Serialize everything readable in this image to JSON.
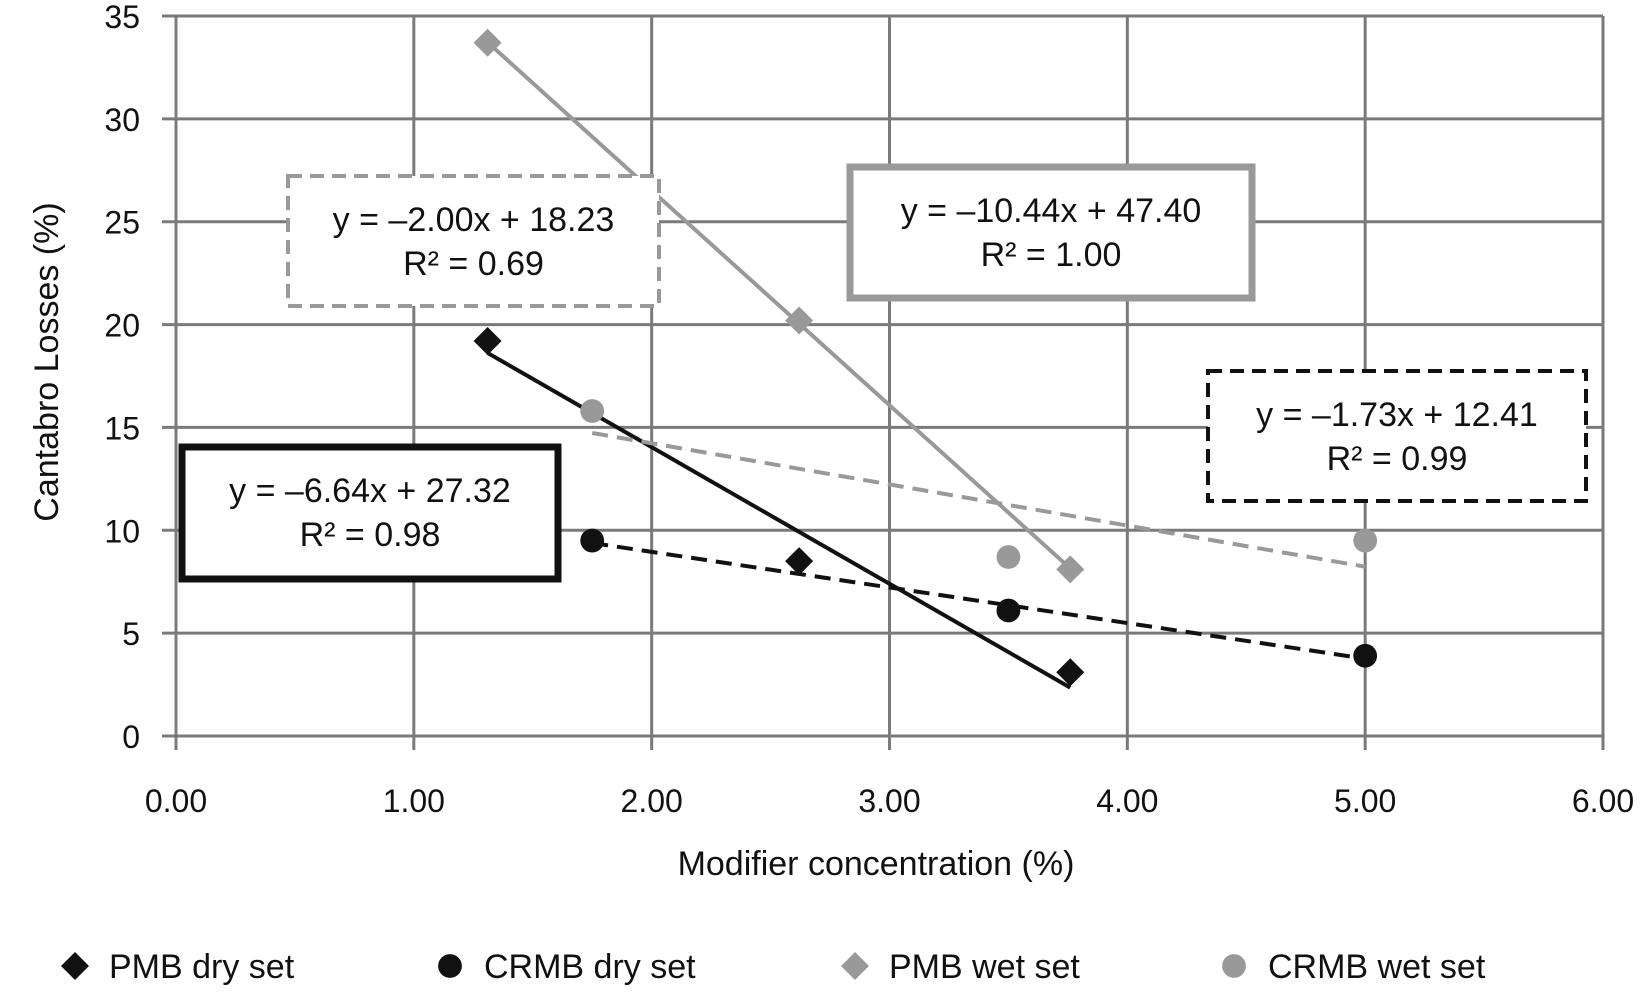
{
  "chart_data": {
    "type": "scatter",
    "xlabel": "Modifier concentration (%)",
    "ylabel": "Cantabro Losses (%)",
    "xlim": [
      0,
      6
    ],
    "ylim": [
      0,
      35
    ],
    "x_ticks": [
      "0.00",
      "1.00",
      "2.00",
      "3.00",
      "4.00",
      "5.00",
      "6.00"
    ],
    "y_ticks": [
      "0",
      "5",
      "10",
      "15",
      "20",
      "25",
      "30",
      "35"
    ],
    "grid": true,
    "legend_position": "bottom",
    "series": [
      {
        "name": "PMB dry set",
        "marker": "diamond",
        "color": "#111111",
        "points": [
          [
            1.31,
            19.2
          ],
          [
            2.62,
            8.5
          ],
          [
            3.76,
            3.1
          ]
        ],
        "trendline": {
          "x": [
            1.31,
            3.76
          ],
          "style": "solid",
          "slope": -6.64,
          "intercept": 27.32,
          "equation": "y = –6.64x + 27.32",
          "r2": "R² = 0.98"
        }
      },
      {
        "name": "CRMB dry set",
        "marker": "circle",
        "color": "#111111",
        "points": [
          [
            1.75,
            9.5
          ],
          [
            3.5,
            6.1
          ],
          [
            5.0,
            3.9
          ]
        ],
        "trendline": {
          "x": [
            1.75,
            5.0
          ],
          "style": "dashed",
          "slope": -1.73,
          "intercept": 12.41,
          "equation": "y = –1.73x + 12.41",
          "r2": "R² = 0.99"
        }
      },
      {
        "name": "PMB wet set",
        "marker": "diamond",
        "color": "#999999",
        "points": [
          [
            1.31,
            33.7
          ],
          [
            2.62,
            20.2
          ],
          [
            3.76,
            8.1
          ]
        ],
        "trendline": {
          "x": [
            1.31,
            3.76
          ],
          "style": "solid",
          "slope": -10.44,
          "intercept": 47.4,
          "equation": "y = –10.44x + 47.40",
          "r2": "R² = 1.00"
        }
      },
      {
        "name": "CRMB wet set",
        "marker": "circle",
        "color": "#999999",
        "points": [
          [
            1.75,
            15.8
          ],
          [
            3.5,
            8.7
          ],
          [
            5.0,
            9.5
          ]
        ],
        "trendline": {
          "x": [
            1.75,
            5.0
          ],
          "style": "dashed",
          "slope": -2.0,
          "intercept": 18.23,
          "equation": "y = –2.00x + 18.23",
          "r2": "R² = 0.69"
        }
      }
    ]
  }
}
